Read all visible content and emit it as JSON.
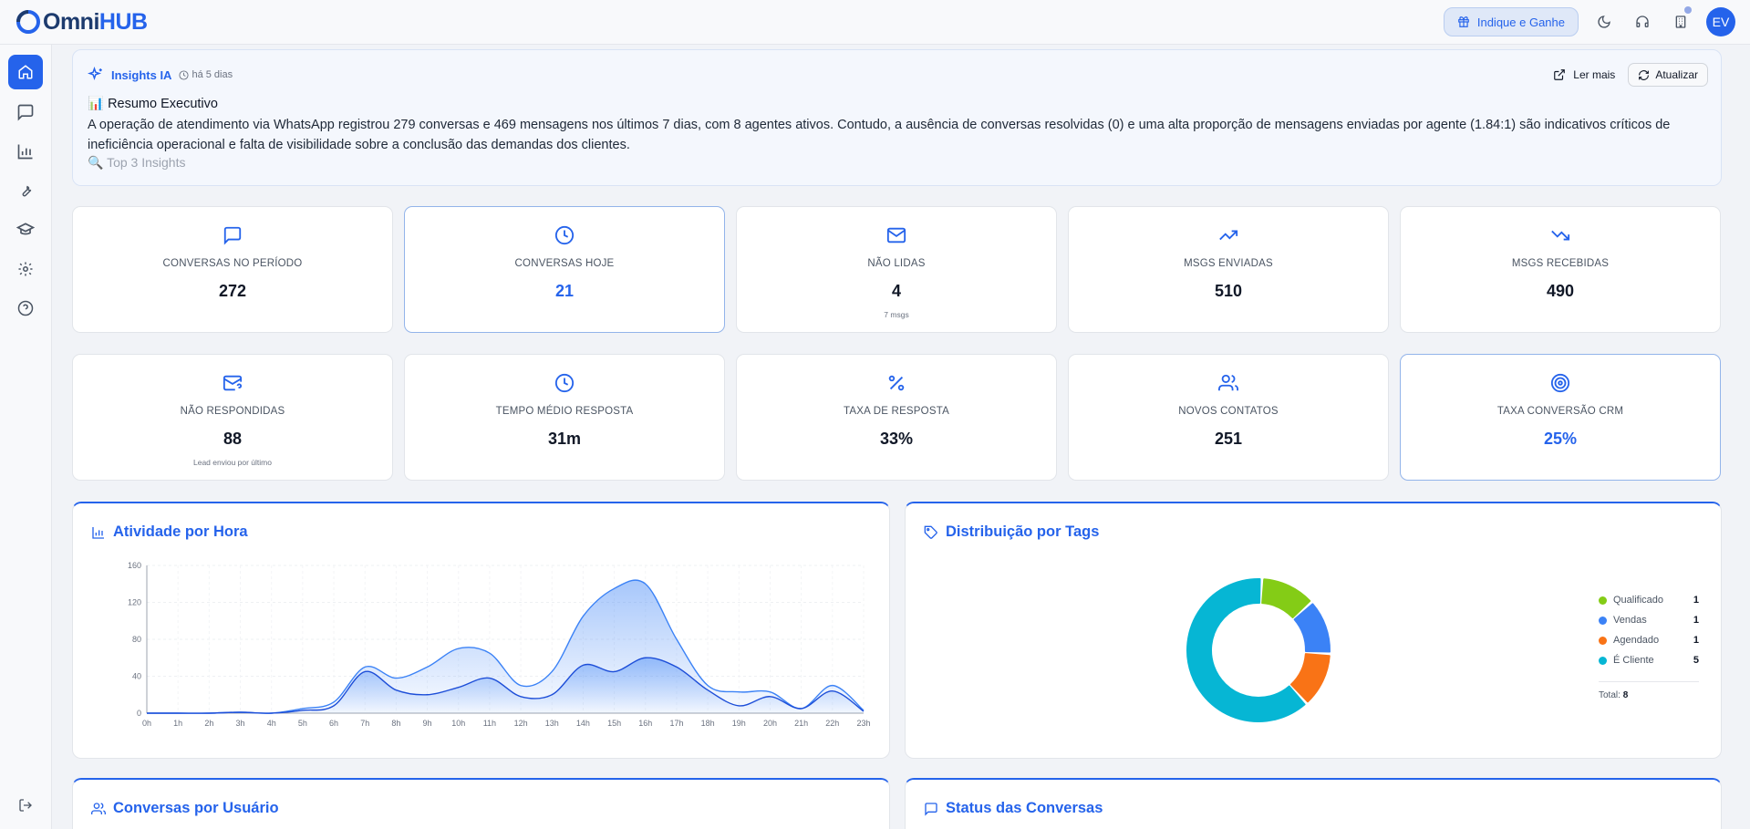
{
  "app": {
    "logo_part1": "Omni",
    "logo_part2": "HUB"
  },
  "topbar": {
    "refer_label": "Indique e Ganhe",
    "avatar_initials": "EV"
  },
  "insights": {
    "title": "Insights IA",
    "time": "há 5 dias",
    "read_more": "Ler mais",
    "refresh": "Atualizar",
    "heading": "📊 Resumo Executivo",
    "body": "A operação de atendimento via WhatsApp registrou 279 conversas e 469 mensagens nos últimos 7 dias, com 8 agentes ativos. Contudo, a ausência de conversas resolvidas (0) e uma alta proporção de mensagens enviadas por agente (1.84:1) são indicativos críticos de ineficiência operacional e falta de visibilidade sobre a conclusão das demandas dos clientes.",
    "more": "🔍 Top 3 Insights"
  },
  "stats": [
    {
      "label": "CONVERSAS NO PERÍODO",
      "value": "272",
      "sub": "",
      "icon": "message-square-icon"
    },
    {
      "label": "CONVERSAS HOJE",
      "value": "21",
      "sub": "",
      "icon": "clock-icon"
    },
    {
      "label": "NÃO LIDAS",
      "value": "4",
      "sub": "7 msgs",
      "icon": "mail-icon"
    },
    {
      "label": "MSGS ENVIADAS",
      "value": "510",
      "sub": "",
      "icon": "trending-up-icon"
    },
    {
      "label": "MSGS RECEBIDAS",
      "value": "490",
      "sub": "",
      "icon": "trending-down-icon"
    },
    {
      "label": "NÃO RESPONDIDAS",
      "value": "88",
      "sub": "Lead enviou por último",
      "icon": "mail-question-icon"
    },
    {
      "label": "TEMPO MÉDIO RESPOSTA",
      "value": "31m",
      "sub": "",
      "icon": "clock-icon"
    },
    {
      "label": "TAXA DE RESPOSTA",
      "value": "33%",
      "sub": "",
      "icon": "percent-icon"
    },
    {
      "label": "NOVOS CONTATOS",
      "value": "251",
      "sub": "",
      "icon": "users-icon"
    },
    {
      "label": "TAXA CONVERSÃO CRM",
      "value": "25%",
      "sub": "",
      "icon": "target-icon"
    }
  ],
  "panels": {
    "activity": "Atividade por Hora",
    "tags": "Distribuição por Tags",
    "by_user": "Conversas por Usuário",
    "status": "Status das Conversas"
  },
  "chart_data": [
    {
      "type": "area",
      "x": [
        "0h",
        "1h",
        "2h",
        "3h",
        "4h",
        "5h",
        "6h",
        "7h",
        "8h",
        "9h",
        "10h",
        "11h",
        "12h",
        "13h",
        "14h",
        "15h",
        "16h",
        "17h",
        "18h",
        "19h",
        "20h",
        "21h",
        "22h",
        "23h"
      ],
      "ylim": [
        0,
        160
      ],
      "yticks": [
        0,
        40,
        80,
        120,
        160
      ],
      "series": [
        {
          "values": [
            0,
            0,
            0,
            1,
            0,
            5,
            12,
            50,
            38,
            50,
            70,
            65,
            30,
            45,
            105,
            135,
            140,
            80,
            30,
            23,
            23,
            5,
            30,
            3
          ]
        },
        {
          "values": [
            0,
            0,
            0,
            1,
            0,
            3,
            8,
            45,
            25,
            20,
            28,
            38,
            18,
            20,
            52,
            45,
            60,
            50,
            25,
            8,
            18,
            5,
            24,
            2
          ]
        }
      ],
      "colors": [
        "#3b82f6",
        "#1d4ed8"
      ]
    },
    {
      "type": "pie",
      "categories": [
        "Qualificado",
        "Vendas",
        "Agendado",
        "É Cliente"
      ],
      "values": [
        1,
        1,
        1,
        5
      ],
      "colors": [
        "#84cc16",
        "#3b82f6",
        "#f97316",
        "#06b6d4"
      ],
      "total_label": "Total:",
      "total": "8"
    }
  ]
}
